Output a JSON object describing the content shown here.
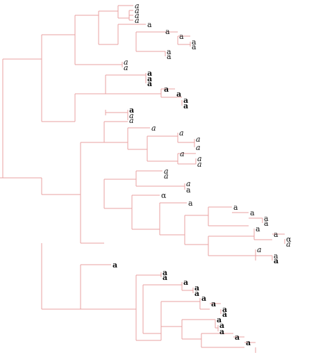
{
  "diagram": {
    "type": "dendrogram",
    "orientation": "left-to-right",
    "branch_color": "#e8a0a0",
    "label_color": "#111111",
    "tips": [
      {
        "label": "a",
        "style": "italic"
      },
      {
        "label": "a",
        "style": "italic"
      },
      {
        "label": "a",
        "style": "italic"
      },
      {
        "label": "a",
        "style": "italic"
      },
      {
        "label": "a",
        "style": "normal"
      },
      {
        "label": "a",
        "style": "normal"
      },
      {
        "label": "a",
        "style": "normal"
      },
      {
        "label": "a",
        "style": "normal"
      },
      {
        "label": "a",
        "style": "normal"
      },
      {
        "label": "a",
        "style": "normal"
      },
      {
        "label": "a",
        "style": "normal"
      },
      {
        "label": "a",
        "style": "italic"
      },
      {
        "label": "a",
        "style": "italic"
      },
      {
        "label": "a",
        "style": "bold"
      },
      {
        "label": "a",
        "style": "bold"
      },
      {
        "label": "a",
        "style": "bold"
      },
      {
        "label": "a",
        "style": "bold"
      },
      {
        "label": "a",
        "style": "bold"
      },
      {
        "label": "a",
        "style": "bold"
      },
      {
        "label": "a",
        "style": "bold"
      },
      {
        "label": "a",
        "style": "bold"
      },
      {
        "label": "a",
        "style": "italic"
      },
      {
        "label": "a",
        "style": "italic"
      },
      {
        "label": "a",
        "style": "italic"
      },
      {
        "label": "a",
        "style": "italic"
      },
      {
        "label": "a",
        "style": "italic"
      },
      {
        "label": "a",
        "style": "italic"
      },
      {
        "label": "a",
        "style": "italic"
      },
      {
        "label": "a",
        "style": "italic"
      },
      {
        "label": "a",
        "style": "italic"
      },
      {
        "label": "a",
        "style": "italic"
      },
      {
        "label": "a",
        "style": "italic"
      },
      {
        "label": "a",
        "style": "italic"
      },
      {
        "label": "a",
        "style": "normal"
      },
      {
        "label": "α",
        "style": "normal"
      },
      {
        "label": "a",
        "style": "normal"
      },
      {
        "label": "a",
        "style": "normal"
      },
      {
        "label": "a",
        "style": "normal"
      },
      {
        "label": "a",
        "style": "normal"
      },
      {
        "label": "a",
        "style": "normal"
      },
      {
        "label": "a",
        "style": "normal"
      },
      {
        "label": "a",
        "style": "normal"
      },
      {
        "label": "α",
        "style": "normal"
      },
      {
        "label": "a",
        "style": "italic"
      },
      {
        "label": "a",
        "style": "italic"
      },
      {
        "label": "a",
        "style": "normal"
      },
      {
        "label": "a",
        "style": "bold"
      },
      {
        "label": "a",
        "style": "bold"
      },
      {
        "label": "a",
        "style": "bold"
      },
      {
        "label": "a",
        "style": "bold"
      },
      {
        "label": "a",
        "style": "bold"
      },
      {
        "label": "a",
        "style": "bold"
      },
      {
        "label": "a",
        "style": "bold"
      },
      {
        "label": "a",
        "style": "bold"
      },
      {
        "label": "a",
        "style": "bold"
      },
      {
        "label": "a",
        "style": "bold"
      },
      {
        "label": "a",
        "style": "bold"
      },
      {
        "label": "a",
        "style": "bold"
      },
      {
        "label": "a",
        "style": "bold"
      },
      {
        "label": "a",
        "style": "bold"
      },
      {
        "label": "a",
        "style": "bold"
      },
      {
        "label": "a",
        "style": "bold"
      }
    ]
  }
}
